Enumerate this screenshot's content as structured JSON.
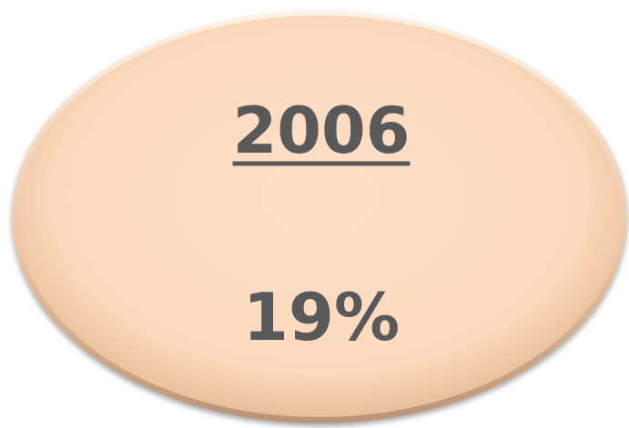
{
  "heading": "2006",
  "value": "19%"
}
